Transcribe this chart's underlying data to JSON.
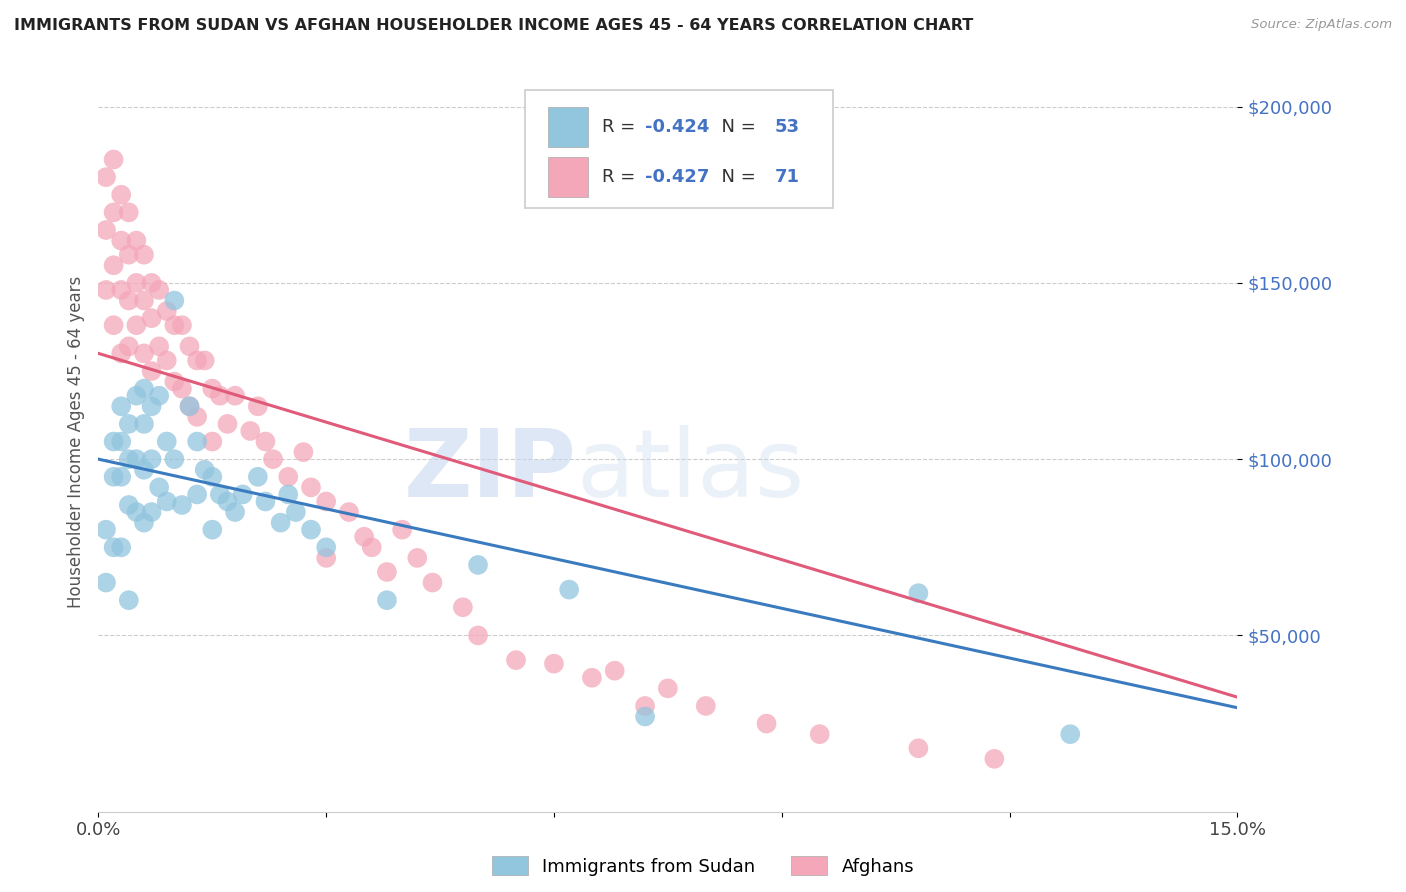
{
  "title": "IMMIGRANTS FROM SUDAN VS AFGHAN HOUSEHOLDER INCOME AGES 45 - 64 YEARS CORRELATION CHART",
  "source": "Source: ZipAtlas.com",
  "ylabel": "Householder Income Ages 45 - 64 years",
  "xlim": [
    0.0,
    0.15
  ],
  "ylim": [
    0,
    210000
  ],
  "yticks": [
    50000,
    100000,
    150000,
    200000
  ],
  "ytick_labels": [
    "$50,000",
    "$100,000",
    "$150,000",
    "$200,000"
  ],
  "sudan_color": "#92c5de",
  "afghan_color": "#f4a7b9",
  "sudan_line_color": "#3a7bbf",
  "afghan_line_color": "#e05a7a",
  "text_blue": "#4472c4",
  "sudan_R": -0.424,
  "sudan_N": 53,
  "afghan_R": -0.427,
  "afghan_N": 71,
  "legend_label_sudan": "Immigrants from Sudan",
  "legend_label_afghan": "Afghans",
  "watermark_zip": "ZIP",
  "watermark_atlas": "atlas",
  "sudan_intercept": 100000,
  "sudan_slope": -470000,
  "afghan_intercept": 130000,
  "afghan_slope": -650000,
  "sudan_x": [
    0.001,
    0.001,
    0.002,
    0.002,
    0.002,
    0.003,
    0.003,
    0.003,
    0.003,
    0.004,
    0.004,
    0.004,
    0.004,
    0.005,
    0.005,
    0.005,
    0.006,
    0.006,
    0.006,
    0.006,
    0.007,
    0.007,
    0.007,
    0.008,
    0.008,
    0.009,
    0.009,
    0.01,
    0.01,
    0.011,
    0.012,
    0.013,
    0.013,
    0.014,
    0.015,
    0.015,
    0.016,
    0.017,
    0.018,
    0.019,
    0.021,
    0.022,
    0.024,
    0.025,
    0.026,
    0.028,
    0.03,
    0.038,
    0.05,
    0.062,
    0.072,
    0.108,
    0.128
  ],
  "sudan_y": [
    80000,
    65000,
    105000,
    95000,
    75000,
    115000,
    105000,
    95000,
    75000,
    110000,
    100000,
    87000,
    60000,
    118000,
    100000,
    85000,
    120000,
    110000,
    97000,
    82000,
    115000,
    100000,
    85000,
    118000,
    92000,
    105000,
    88000,
    145000,
    100000,
    87000,
    115000,
    105000,
    90000,
    97000,
    95000,
    80000,
    90000,
    88000,
    85000,
    90000,
    95000,
    88000,
    82000,
    90000,
    85000,
    80000,
    75000,
    60000,
    70000,
    63000,
    27000,
    62000,
    22000
  ],
  "afghan_x": [
    0.001,
    0.001,
    0.001,
    0.002,
    0.002,
    0.002,
    0.002,
    0.003,
    0.003,
    0.003,
    0.003,
    0.004,
    0.004,
    0.004,
    0.004,
    0.005,
    0.005,
    0.005,
    0.006,
    0.006,
    0.006,
    0.007,
    0.007,
    0.007,
    0.008,
    0.008,
    0.009,
    0.009,
    0.01,
    0.01,
    0.011,
    0.011,
    0.012,
    0.012,
    0.013,
    0.013,
    0.014,
    0.015,
    0.015,
    0.016,
    0.017,
    0.018,
    0.02,
    0.021,
    0.022,
    0.023,
    0.025,
    0.027,
    0.028,
    0.03,
    0.03,
    0.033,
    0.035,
    0.036,
    0.038,
    0.04,
    0.042,
    0.044,
    0.048,
    0.05,
    0.055,
    0.06,
    0.065,
    0.068,
    0.072,
    0.075,
    0.08,
    0.088,
    0.095,
    0.108,
    0.118
  ],
  "afghan_y": [
    180000,
    165000,
    148000,
    185000,
    170000,
    155000,
    138000,
    175000,
    162000,
    148000,
    130000,
    170000,
    158000,
    145000,
    132000,
    162000,
    150000,
    138000,
    158000,
    145000,
    130000,
    150000,
    140000,
    125000,
    148000,
    132000,
    142000,
    128000,
    138000,
    122000,
    138000,
    120000,
    132000,
    115000,
    128000,
    112000,
    128000,
    120000,
    105000,
    118000,
    110000,
    118000,
    108000,
    115000,
    105000,
    100000,
    95000,
    102000,
    92000,
    88000,
    72000,
    85000,
    78000,
    75000,
    68000,
    80000,
    72000,
    65000,
    58000,
    50000,
    43000,
    42000,
    38000,
    40000,
    30000,
    35000,
    30000,
    25000,
    22000,
    18000,
    15000
  ]
}
